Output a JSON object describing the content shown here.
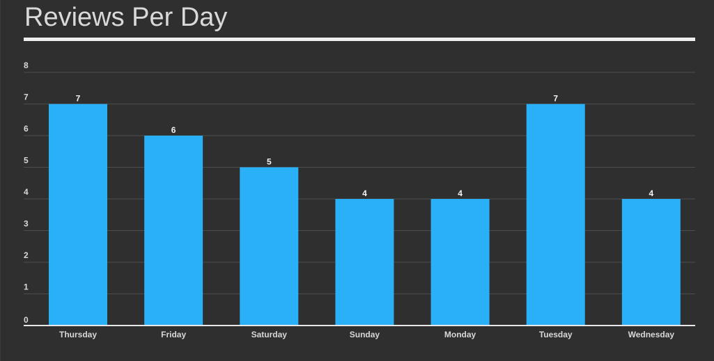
{
  "title": "Reviews Per Day",
  "colors": {
    "background": "#2f2f2f",
    "bar": "#29b0f6",
    "title": "#d9d9d9",
    "rule": "#efefef",
    "grid": "#4d4d4d",
    "axis": "#e8e8e8",
    "tick": "#d8d8d8",
    "value": "#f2f2f2"
  },
  "chart_data": {
    "type": "bar",
    "title": "Reviews Per Day",
    "xlabel": "",
    "ylabel": "",
    "categories": [
      "Thursday",
      "Friday",
      "Saturday",
      "Sunday",
      "Monday",
      "Tuesday",
      "Wednesday"
    ],
    "values": [
      7,
      6,
      5,
      4,
      4,
      7,
      4
    ],
    "ylim": [
      0,
      8
    ],
    "yticks": [
      0,
      1,
      2,
      3,
      4,
      5,
      6,
      7,
      8
    ],
    "grid": true,
    "legend": "none",
    "data_labels": true
  }
}
